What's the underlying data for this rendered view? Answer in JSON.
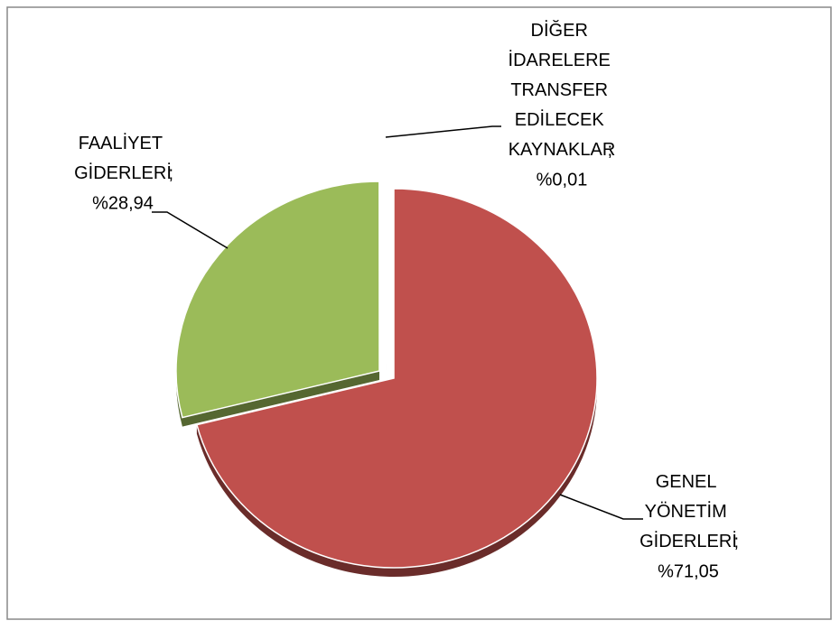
{
  "chart_data": {
    "type": "pie",
    "categories": [
      "GENEL YÖNETİM GİDERLERİ",
      "FAALİYET GİDERLERİ",
      "DİĞER İDARELERE TRANSFER EDİLECEK KAYNAKLAR"
    ],
    "values": [
      71.05,
      28.94,
      0.01
    ],
    "value_labels": [
      "%71,05",
      "%28,94",
      "%0,01"
    ],
    "label_separator": ";",
    "colors": [
      "#c0504d",
      "#9bbb59",
      "#4f81bd"
    ]
  }
}
